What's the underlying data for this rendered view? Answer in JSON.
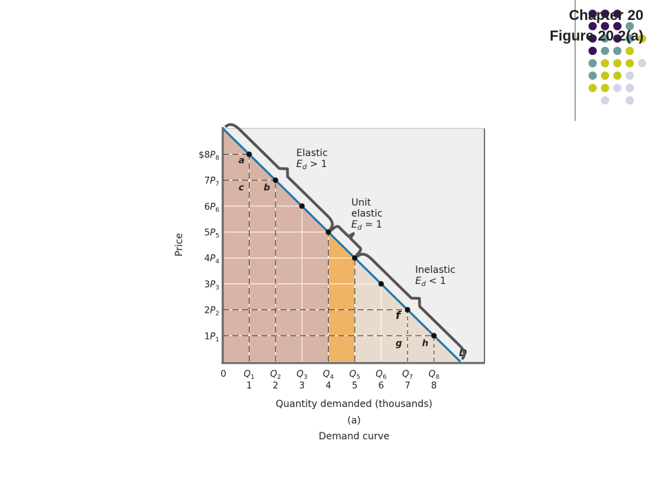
{
  "header": {
    "chapter": "Chapter 20",
    "figure": "Figure 20.2(a)"
  },
  "colors": {
    "plot_bg": "#efefef",
    "elastic_area": "#d8b4a6",
    "unit_area": "#efb466",
    "inelastic_area": "#e8dbcd",
    "curve": "#1a78b0",
    "brace": "#555555",
    "dot_purple": "#3c1259",
    "dot_teal": "#6c9e9e",
    "dot_yellow": "#c8c81a",
    "dot_lavender": "#d4d4e6"
  },
  "chart_data": {
    "type": "line",
    "ylabel": "Price",
    "xlabel": "Quantity demanded (thousands)",
    "panel_label": "(a)",
    "caption": "Demand curve",
    "origin_label": "0",
    "xlim": [
      0,
      9
    ],
    "ylim": [
      0,
      9
    ],
    "y_ticks": [
      {
        "value": 8,
        "label": "$8",
        "p": "P",
        "sub": "8"
      },
      {
        "value": 7,
        "label": "7",
        "p": "P",
        "sub": "7"
      },
      {
        "value": 6,
        "label": "6",
        "p": "P",
        "sub": "6"
      },
      {
        "value": 5,
        "label": "5",
        "p": "P",
        "sub": "5"
      },
      {
        "value": 4,
        "label": "4",
        "p": "P",
        "sub": "4"
      },
      {
        "value": 3,
        "label": "3",
        "p": "P",
        "sub": "3"
      },
      {
        "value": 2,
        "label": "2",
        "p": "P",
        "sub": "2"
      },
      {
        "value": 1,
        "label": "1",
        "p": "P",
        "sub": "1"
      }
    ],
    "x_ticks": [
      {
        "value": 1,
        "q": "Q",
        "sub": "1",
        "label": "1"
      },
      {
        "value": 2,
        "q": "Q",
        "sub": "2",
        "label": "2"
      },
      {
        "value": 3,
        "q": "Q",
        "sub": "3",
        "label": "3"
      },
      {
        "value": 4,
        "q": "Q",
        "sub": "4",
        "label": "4"
      },
      {
        "value": 5,
        "q": "Q",
        "sub": "5",
        "label": "5"
      },
      {
        "value": 6,
        "q": "Q",
        "sub": "6",
        "label": "6"
      },
      {
        "value": 7,
        "q": "Q",
        "sub": "7",
        "label": "7"
      },
      {
        "value": 8,
        "q": "Q",
        "sub": "8",
        "label": "8"
      }
    ],
    "series": [
      {
        "name": "D",
        "x": [
          1,
          2,
          3,
          4,
          5,
          6,
          7,
          8
        ],
        "y": [
          8,
          7,
          6,
          5,
          4,
          3,
          2,
          1
        ]
      }
    ],
    "curve_extent": {
      "x": [
        0,
        9
      ],
      "y": [
        9,
        0
      ]
    },
    "regions": [
      {
        "name": "Elastic",
        "x": [
          0,
          4
        ]
      },
      {
        "name": "Unit elastic",
        "x": [
          4,
          5
        ]
      },
      {
        "name": "Inelastic",
        "x": [
          5,
          9
        ]
      }
    ],
    "region_labels": [
      {
        "lines": [
          "Elastic"
        ],
        "cond": {
          "e": "E",
          "sub": "d",
          "op": " > 1"
        }
      },
      {
        "lines": [
          "Unit",
          "elastic"
        ],
        "cond": {
          "e": "E",
          "sub": "d",
          "op": " = 1"
        }
      },
      {
        "lines": [
          "Inelastic"
        ],
        "cond": {
          "e": "E",
          "sub": "d",
          "op": " < 1"
        }
      }
    ],
    "area_labels": [
      {
        "text": "a",
        "x": 0.6,
        "y": 7.65
      },
      {
        "text": "c",
        "x": 0.6,
        "y": 6.6
      },
      {
        "text": "b",
        "x": 1.55,
        "y": 6.6
      },
      {
        "text": "f",
        "x": 6.55,
        "y": 1.65
      },
      {
        "text": "g",
        "x": 6.55,
        "y": 0.6
      },
      {
        "text": "h",
        "x": 7.55,
        "y": 0.6
      }
    ]
  }
}
